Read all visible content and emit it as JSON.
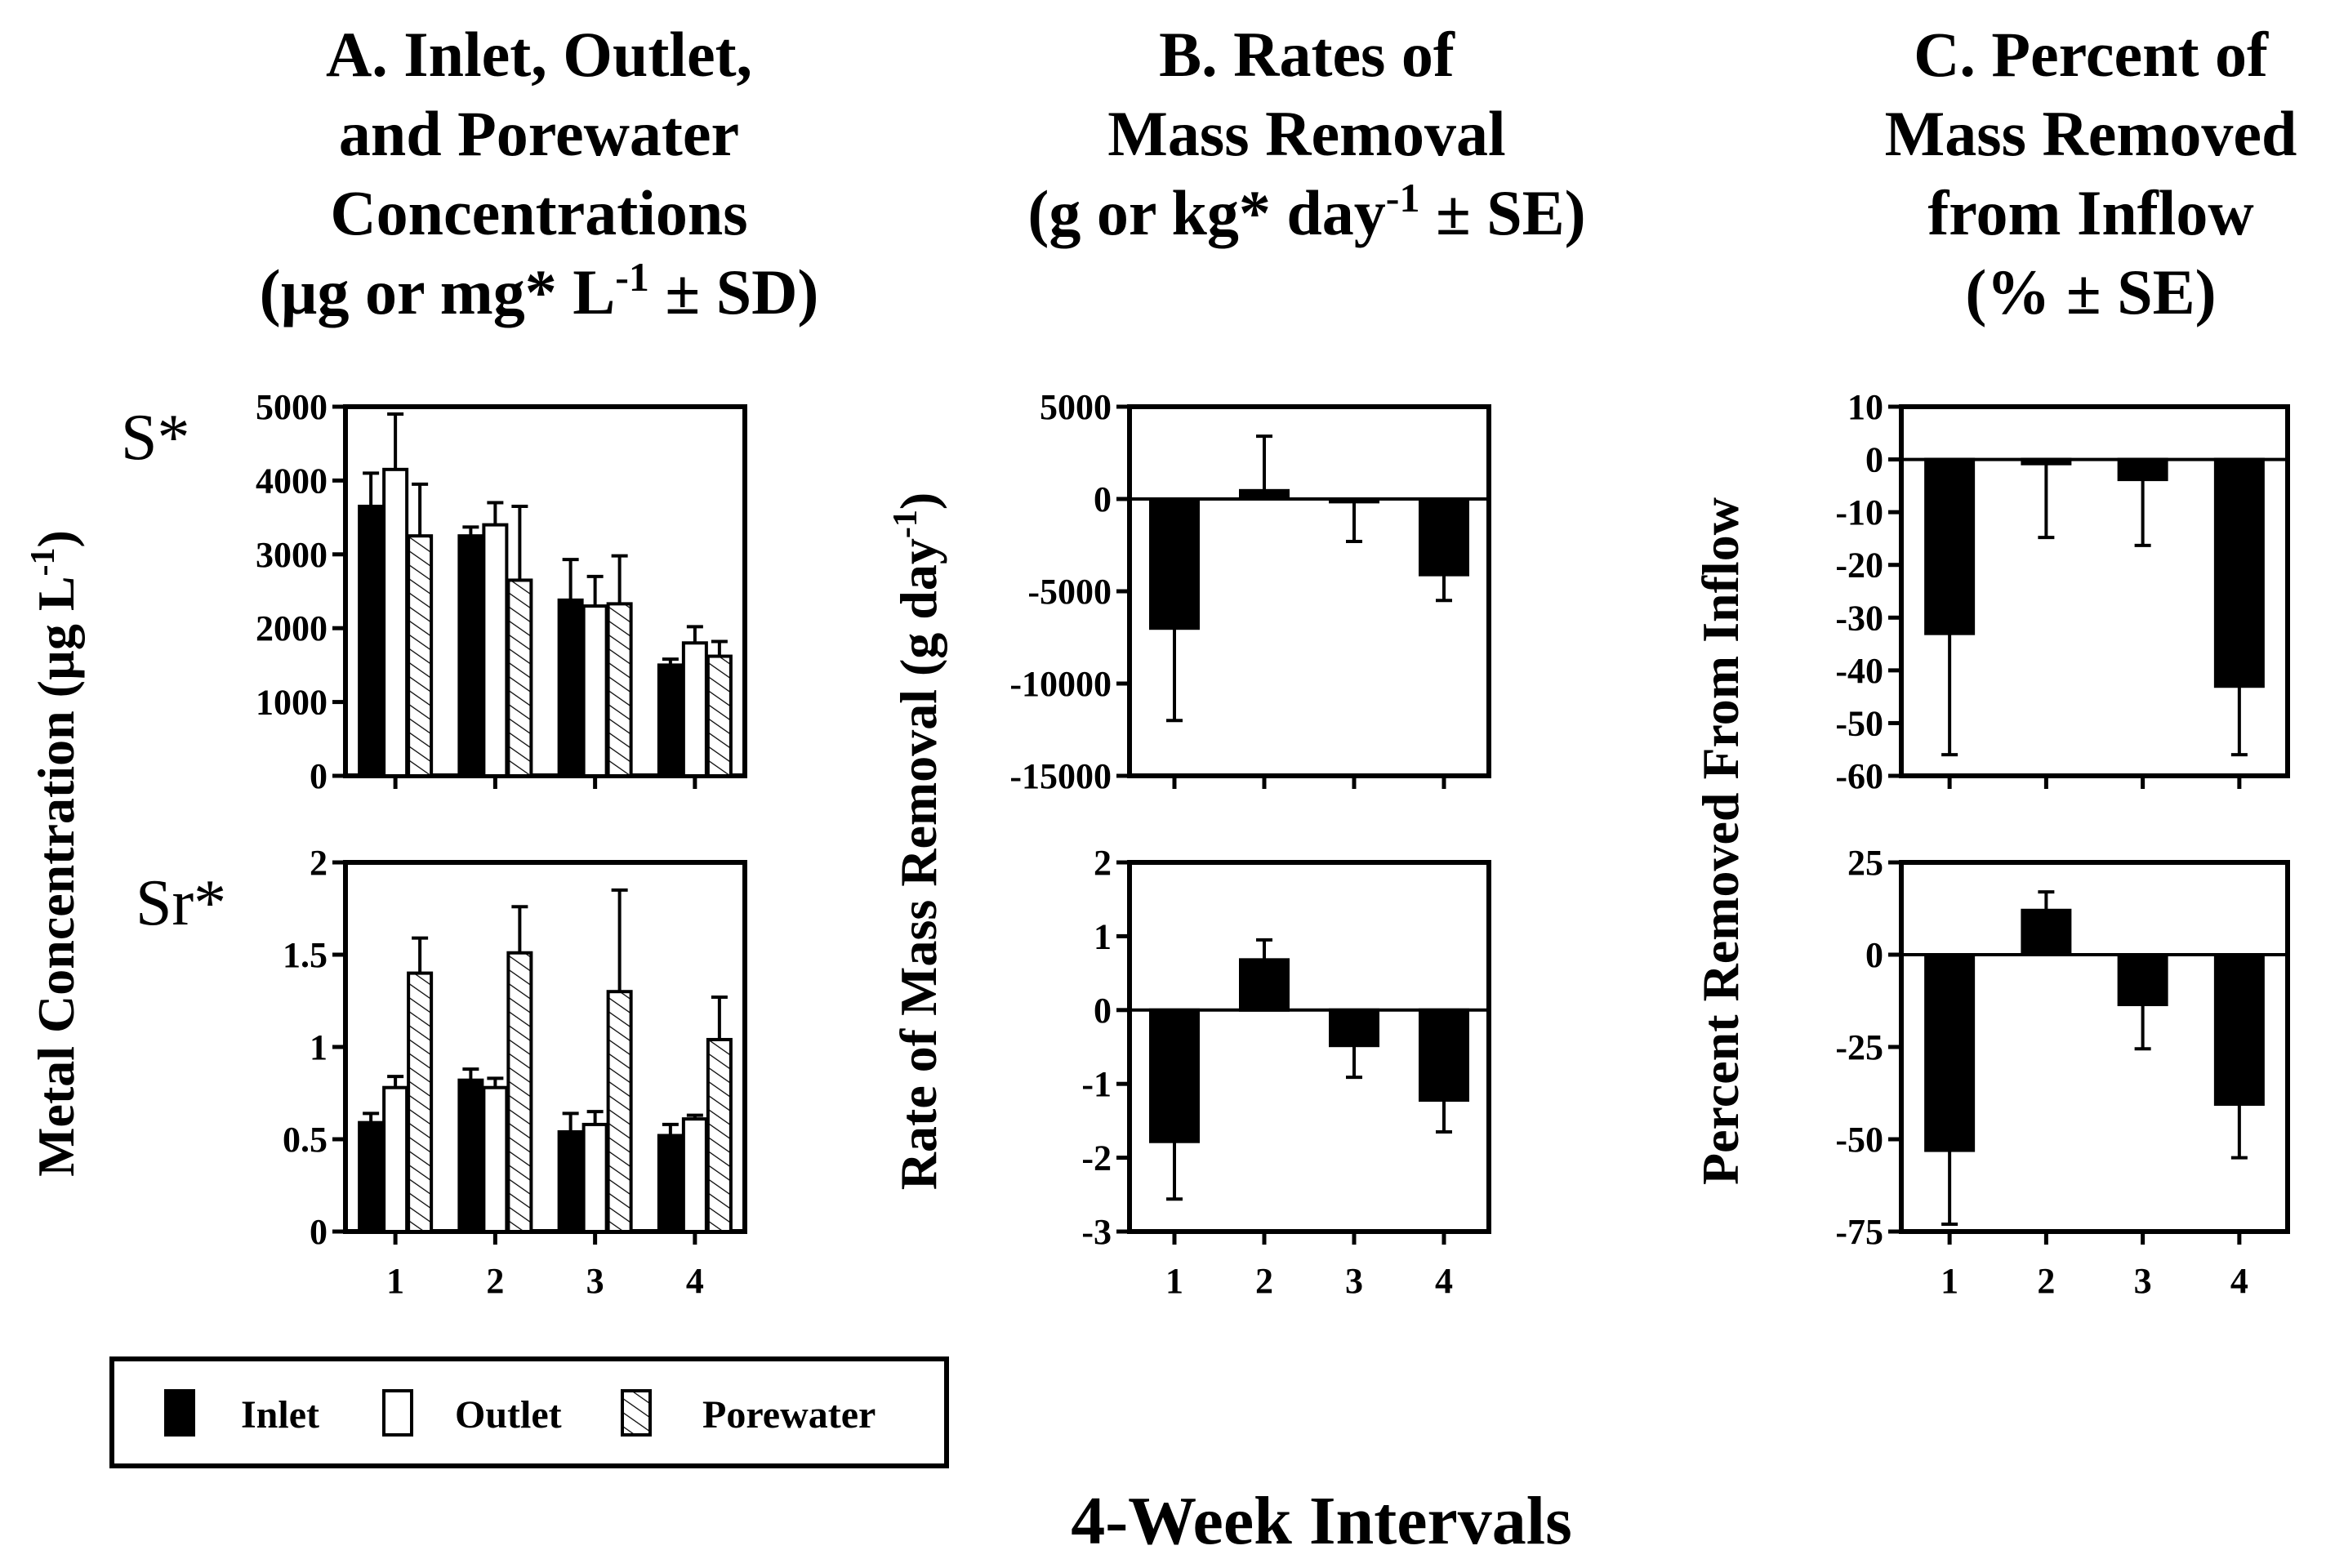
{
  "titles": {
    "A": {
      "line1": "A.  Inlet, Outlet,",
      "line2": "and Porewater",
      "line3": "Concentrations",
      "line4_main": "(µg or mg* L",
      "line4_sup": "-1",
      "line4_tail": " ± SD)"
    },
    "B": {
      "line1": "B.  Rates of",
      "line2": "Mass Removal",
      "line3_main": "(g or kg* day",
      "line3_sup": "-1",
      "line3_tail": " ± SE)"
    },
    "C": {
      "line1": "C.  Percent of",
      "line2": "Mass Removed",
      "line3": "from Inflow",
      "line4": "(% ± SE)"
    }
  },
  "axis_labels": {
    "A_y_main": "Metal Concentration (µg L",
    "A_y_sup": "-1",
    "A_y_tail": ")",
    "B_y_main": "Rate of Mass Removal (g day",
    "B_y_sup": "-1",
    "B_y_tail": ")",
    "C_y": "Percent Removed From Inflow",
    "x_common": "4-Week Intervals"
  },
  "element_labels": {
    "top": "S*",
    "bottom": "Sr*"
  },
  "legend": {
    "inlet": "Inlet",
    "outlet": "Outlet",
    "porewater": "Porewater"
  },
  "chart_data": [
    {
      "id": "A_S",
      "type": "bar",
      "panel": "A",
      "element": "S*",
      "categories": [
        "1",
        "2",
        "3",
        "4"
      ],
      "series": [
        {
          "name": "Inlet",
          "values": [
            3650,
            3250,
            2380,
            1500
          ],
          "err": [
            450,
            120,
            550,
            80
          ]
        },
        {
          "name": "Outlet",
          "values": [
            4150,
            3400,
            2300,
            1800
          ],
          "err": [
            750,
            300,
            400,
            220
          ]
        },
        {
          "name": "Porewater",
          "values": [
            3250,
            2650,
            2330,
            1620
          ],
          "err": [
            700,
            1000,
            650,
            200
          ]
        }
      ],
      "ylim": [
        0,
        5000
      ],
      "yticks": [
        0,
        1000,
        2000,
        3000,
        4000,
        5000
      ]
    },
    {
      "id": "A_Sr",
      "type": "bar",
      "panel": "A",
      "element": "Sr*",
      "categories": [
        "1",
        "2",
        "3",
        "4"
      ],
      "series": [
        {
          "name": "Inlet",
          "values": [
            0.59,
            0.82,
            0.54,
            0.52
          ],
          "err": [
            0.05,
            0.06,
            0.1,
            0.06
          ]
        },
        {
          "name": "Outlet",
          "values": [
            0.78,
            0.78,
            0.58,
            0.61
          ],
          "err": [
            0.06,
            0.05,
            0.07,
            0.02
          ]
        },
        {
          "name": "Porewater",
          "values": [
            1.4,
            1.51,
            1.3,
            1.04
          ],
          "err": [
            0.19,
            0.25,
            0.55,
            0.23
          ]
        }
      ],
      "ylim": [
        0,
        2
      ],
      "yticks": [
        0,
        0.5,
        1,
        1.5,
        2
      ]
    },
    {
      "id": "B_S",
      "type": "bar",
      "panel": "B",
      "element": "S*",
      "categories": [
        "1",
        "2",
        "3",
        "4"
      ],
      "values": [
        -7000,
        450,
        -150,
        -4100
      ],
      "err": [
        5000,
        2950,
        2150,
        1400
      ],
      "ylim": [
        -15000,
        5000
      ],
      "yticks": [
        -15000,
        -10000,
        -5000,
        0,
        5000
      ]
    },
    {
      "id": "B_Sr",
      "type": "bar",
      "panel": "B",
      "element": "Sr*",
      "categories": [
        "1",
        "2",
        "3",
        "4"
      ],
      "values": [
        -1.78,
        0.68,
        -0.48,
        -1.22
      ],
      "err": [
        0.78,
        0.27,
        0.43,
        0.43
      ],
      "ylim": [
        -3,
        2
      ],
      "yticks": [
        -3,
        -2,
        -1,
        0,
        1,
        2
      ]
    },
    {
      "id": "C_S",
      "type": "bar",
      "panel": "C",
      "element": "S*",
      "categories": [
        "1",
        "2",
        "3",
        "4"
      ],
      "values": [
        -33,
        -0.8,
        -3.8,
        -43
      ],
      "err": [
        23,
        14,
        12.5,
        13
      ],
      "ylim": [
        -60,
        10
      ],
      "yticks": [
        -60,
        -50,
        -40,
        -30,
        -20,
        -10,
        0,
        10
      ]
    },
    {
      "id": "C_Sr",
      "type": "bar",
      "panel": "C",
      "element": "Sr*",
      "categories": [
        "1",
        "2",
        "3",
        "4"
      ],
      "values": [
        -53,
        12,
        -13.5,
        -40.5
      ],
      "err": [
        20,
        5,
        12,
        14.5
      ],
      "ylim": [
        -75,
        25
      ],
      "yticks": [
        -75,
        -50,
        -25,
        0,
        25
      ]
    }
  ]
}
